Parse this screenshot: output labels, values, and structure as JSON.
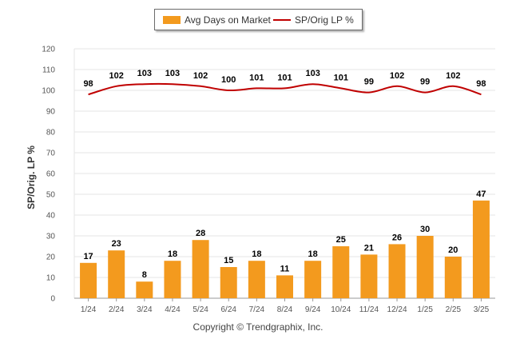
{
  "colors": {
    "bar": "#F39A1E",
    "line": "#C00000",
    "grid": "#E6E6E6",
    "axis": "#999999"
  },
  "legend": {
    "bar_label": "Avg Days on Market",
    "line_label": "SP/Orig LP %"
  },
  "footer": {
    "copyright": "Copyright © Trendgraphix, Inc."
  },
  "chart_data": {
    "type": "bar",
    "categories": [
      "1/24",
      "2/24",
      "3/24",
      "4/24",
      "5/24",
      "6/24",
      "7/24",
      "8/24",
      "9/24",
      "10/24",
      "11/24",
      "12/24",
      "1/25",
      "2/25",
      "3/25"
    ],
    "series": [
      {
        "name": "Avg Days on Market",
        "type": "bar",
        "values": [
          17,
          23,
          8,
          18,
          28,
          15,
          18,
          11,
          18,
          25,
          21,
          26,
          30,
          20,
          47
        ]
      },
      {
        "name": "SP/Orig LP %",
        "type": "line",
        "values": [
          98,
          102,
          103,
          103,
          102,
          100,
          101,
          101,
          103,
          101,
          99,
          102,
          99,
          102,
          98
        ]
      }
    ],
    "ylabel": "SP/Orig. LP %",
    "ylim": [
      0,
      120
    ],
    "yticks": [
      0,
      10,
      20,
      30,
      40,
      50,
      60,
      70,
      80,
      90,
      100,
      110,
      120
    ],
    "grid": true,
    "legend_position": "top-center"
  }
}
